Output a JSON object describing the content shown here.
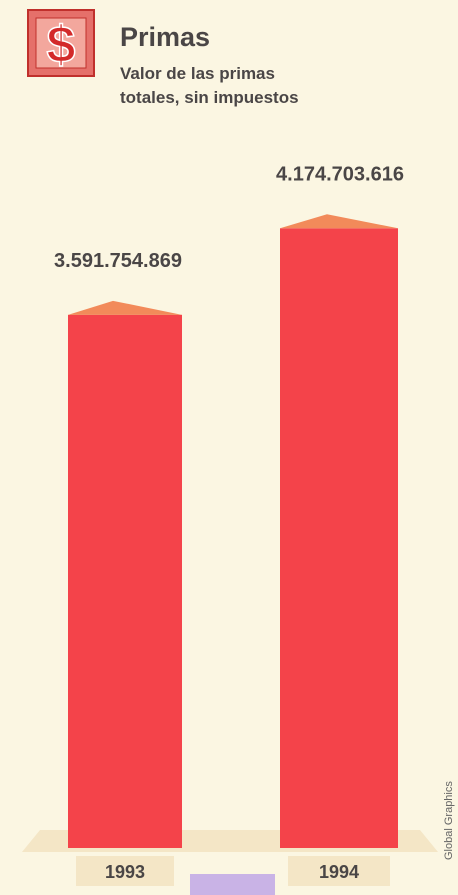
{
  "chart_data": {
    "type": "bar",
    "title": "Primas",
    "subtitle": "Valor de las primas totales, sin impuestos",
    "categories": [
      "1993",
      "1994"
    ],
    "values": [
      3591754869,
      4174703616
    ],
    "value_labels": [
      "3.591.754.869",
      "4.174.703.616"
    ],
    "color": "#f4434a",
    "ylim": [
      0,
      4500000000
    ],
    "credit": "Global Graphics"
  }
}
